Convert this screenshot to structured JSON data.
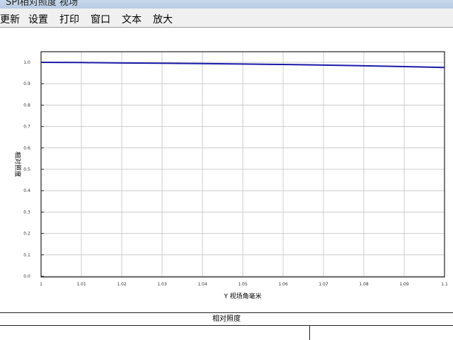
{
  "window": {
    "title": "SPI相对照度 视场"
  },
  "menu": [
    "更新",
    "设置",
    "打印",
    "窗口",
    "文本",
    "放大"
  ],
  "bottom_panel": {
    "title": "相对照度"
  },
  "chart_data": {
    "type": "line",
    "xlabel": "Y 视场角毫米",
    "ylabel": "相对照度",
    "xlim": [
      1,
      1.1
    ],
    "ylim": [
      0,
      1
    ],
    "x_ticks": [
      "1",
      "1.01",
      "1.02",
      "1.03",
      "1.04",
      "1.05",
      "1.06",
      "1.07",
      "1.08",
      "1.09",
      "1.1"
    ],
    "y_ticks": [
      "0.0",
      "0.1",
      "0.2",
      "0.3",
      "0.4",
      "0.5",
      "0.6",
      "0.7",
      "0.8",
      "0.9",
      "1.0"
    ],
    "grid": true,
    "series": [
      {
        "color": "#1a1aa8",
        "x": [
          1,
          1.01,
          1.02,
          1.03,
          1.04,
          1.05,
          1.06,
          1.07,
          1.08,
          1.09,
          1.1
        ],
        "y": [
          1.0,
          0.999,
          0.997,
          0.996,
          0.994,
          0.992,
          0.99,
          0.987,
          0.984,
          0.98,
          0.976
        ]
      }
    ]
  }
}
